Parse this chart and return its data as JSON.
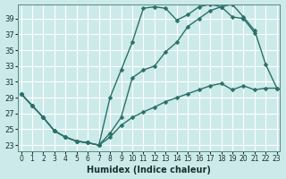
{
  "xlabel": "Humidex (Indice chaleur)",
  "bg_color": "#cceaea",
  "grid_color": "#ffffff",
  "line_color": "#2a7068",
  "xlim": [
    -0.3,
    23.3
  ],
  "ylim": [
    22.2,
    40.8
  ],
  "yticks": [
    23,
    25,
    27,
    29,
    31,
    33,
    35,
    37,
    39
  ],
  "xticks": [
    0,
    1,
    2,
    3,
    4,
    5,
    6,
    7,
    8,
    9,
    10,
    11,
    12,
    13,
    14,
    15,
    16,
    17,
    18,
    19,
    20,
    21,
    22,
    23
  ],
  "line1": {
    "x": [
      0,
      1,
      2,
      3,
      4,
      5,
      6,
      7,
      8,
      9,
      10,
      11,
      12,
      13,
      14,
      15,
      16,
      17,
      18,
      19,
      20,
      21
    ],
    "y": [
      29.5,
      28.0,
      26.5,
      24.8,
      24.0,
      23.5,
      23.3,
      23.0,
      29.0,
      32.5,
      36.0,
      40.3,
      40.5,
      40.3,
      38.8,
      39.5,
      40.5,
      40.8,
      40.5,
      39.2,
      39.0,
      37.2
    ]
  },
  "line2": {
    "x": [
      0,
      1,
      2,
      3,
      4,
      5,
      6,
      7,
      8,
      9,
      10,
      11,
      12,
      13,
      14,
      15,
      16,
      17,
      18,
      19,
      20,
      21,
      22,
      23
    ],
    "y": [
      29.5,
      28.0,
      26.5,
      24.8,
      24.0,
      23.5,
      23.3,
      23.0,
      24.5,
      26.5,
      31.5,
      32.5,
      33.0,
      34.8,
      36.0,
      38.0,
      39.0,
      40.0,
      40.5,
      40.8,
      39.2,
      37.5,
      33.2,
      30.2
    ]
  },
  "line3": {
    "x": [
      0,
      1,
      2,
      3,
      4,
      5,
      6,
      7,
      8,
      9,
      10,
      11,
      12,
      13,
      14,
      15,
      16,
      17,
      18,
      19,
      20,
      21,
      22,
      23
    ],
    "y": [
      29.5,
      28.0,
      26.5,
      24.8,
      24.0,
      23.5,
      23.3,
      23.0,
      24.0,
      25.5,
      26.5,
      27.2,
      27.8,
      28.5,
      29.0,
      29.5,
      30.0,
      30.5,
      30.8,
      30.0,
      30.5,
      30.0,
      30.2,
      30.2
    ]
  },
  "markersize": 2.5,
  "linewidth": 1.0
}
